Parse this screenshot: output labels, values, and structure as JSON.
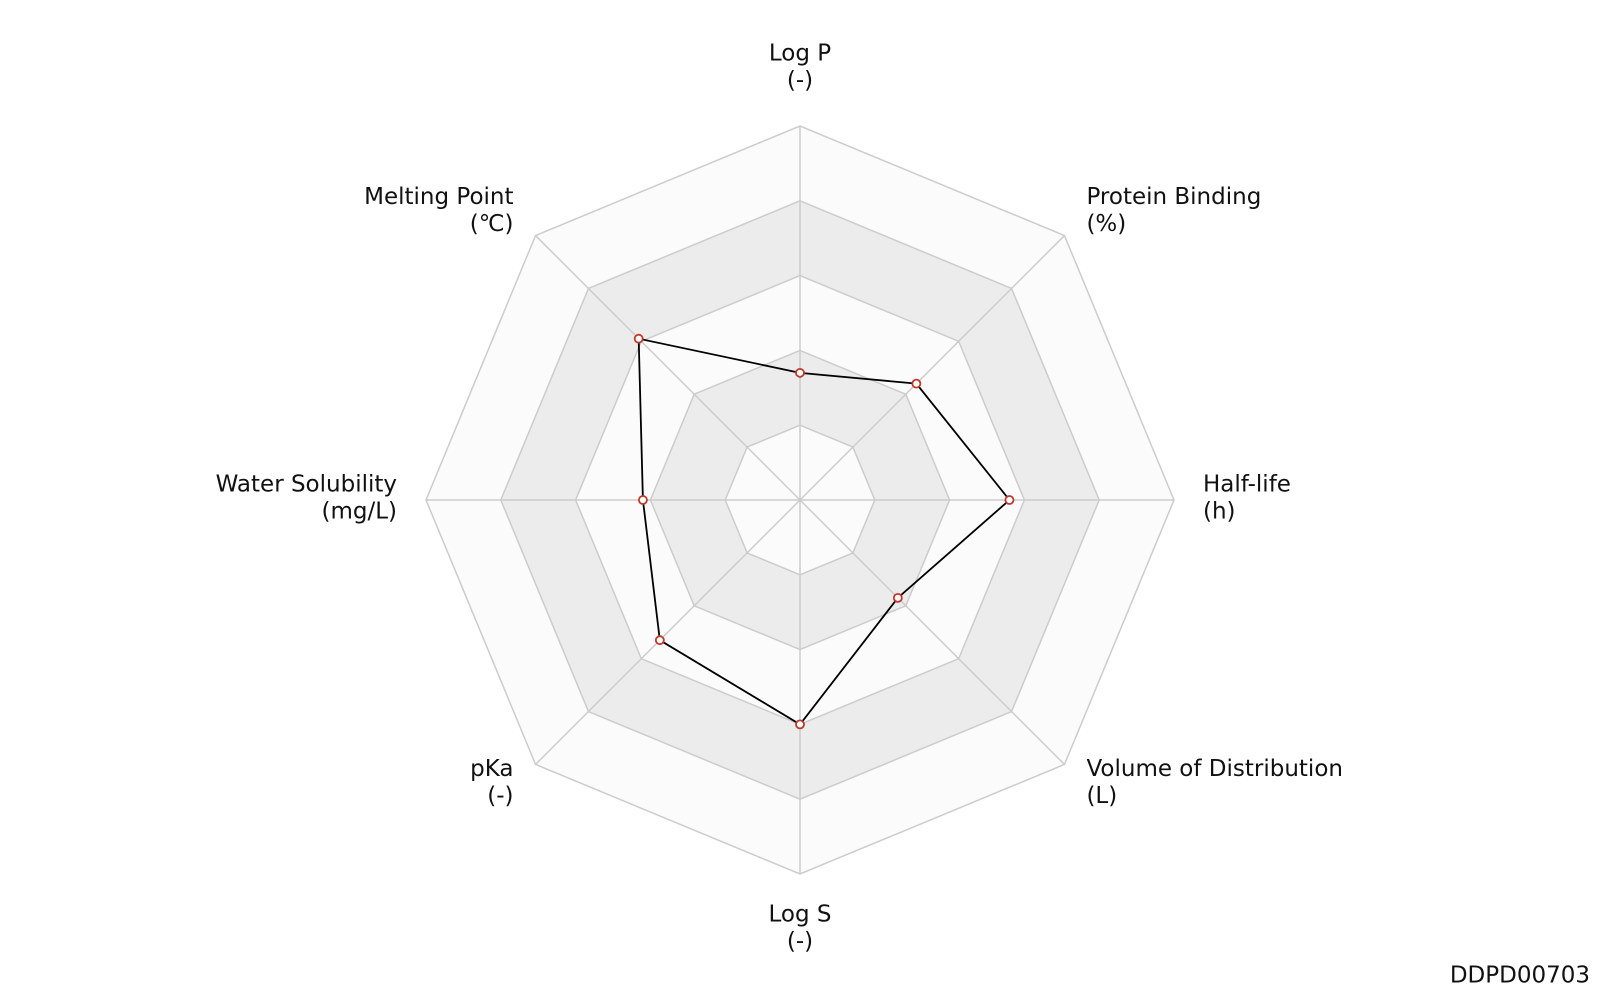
{
  "chart_data": {
    "type": "radar",
    "categories": [
      "Log P",
      "Protein Binding",
      "Half-life",
      "Volume of Distribution",
      "Log S",
      "pKa",
      "Water Solubility",
      "Melting Point"
    ],
    "units": [
      "(-)",
      "(%)",
      "(h)",
      "(L)",
      "(-)",
      "(-)",
      "(mg/L)",
      "(℃)"
    ],
    "values": [
      0.34,
      0.44,
      0.56,
      0.37,
      0.6,
      0.53,
      0.42,
      0.61
    ],
    "rlim": [
      0,
      1
    ],
    "rticks": [
      0.2,
      0.4,
      0.6,
      0.8,
      1
    ],
    "line_color": "#000000",
    "marker_color": "#c0392b",
    "band_colors": [
      "#fbfbfb",
      "#ececec"
    ]
  },
  "footer": "DDPD00703"
}
